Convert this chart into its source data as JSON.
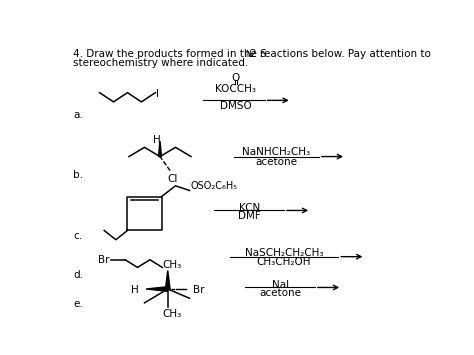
{
  "background_color": "#ffffff",
  "text_color": "#000000",
  "title1": "4. Draw the products formed in the S",
  "title1_sub": "N",
  "title1_end": "2 reactions below. Pay attention to",
  "title2": "stereochemistry where indicated.",
  "reactions": [
    {
      "label": "a.",
      "reagent_top": "KOCCH₃",
      "reagent_top_o": "O",
      "reagent_bot": "DMSO"
    },
    {
      "label": "b.",
      "reagent_top": "NaNHCH₂CH₃",
      "reagent_bot": "acetone"
    },
    {
      "label": "c.",
      "reagent_top": "KCN",
      "reagent_bot": "DMF"
    },
    {
      "label": "d.",
      "reagent_top": "NaSCH₂CH₂CH₃",
      "reagent_bot": "CH₃CH₂OH"
    },
    {
      "label": "e.",
      "reagent_top": "NaI",
      "reagent_bot": "acetone"
    }
  ]
}
